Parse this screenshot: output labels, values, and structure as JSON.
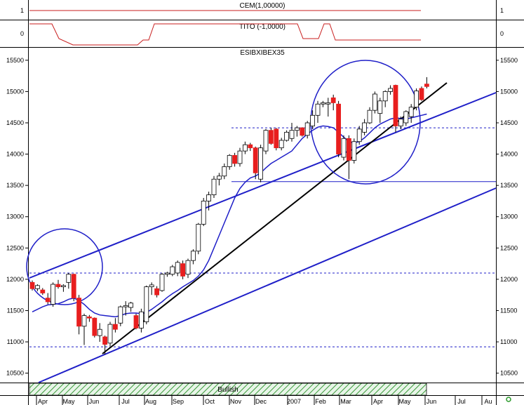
{
  "panels": {
    "top": {
      "title": "CEM(1,00000)",
      "axis_ticks": [
        "1"
      ],
      "color": "#c81e1e"
    },
    "middle": {
      "title": "TITO (-1,0000)",
      "axis_ticks": [
        "0"
      ],
      "color": "#c81e1e"
    },
    "main": {
      "title": "ESIBXIBEX35"
    }
  },
  "signal_bar": {
    "label": "Bullish"
  },
  "chart_data": {
    "type": "candlestick",
    "title": "ESIBXIBEX35",
    "x_labels": [
      "Apr",
      "May",
      "Jun",
      "Jul",
      "Aug",
      "Sep",
      "Oct",
      "Nov",
      "Dec",
      "2007",
      "Feb",
      "Mar",
      "Apr",
      "May",
      "Jun",
      "Jul",
      "Au"
    ],
    "y_ticks": [
      10500,
      11000,
      11500,
      12000,
      12500,
      13000,
      13500,
      14000,
      14500,
      15000,
      15500
    ],
    "ylim": [
      10350,
      15700
    ],
    "ohlc": [
      [
        11950,
        11980,
        11820,
        11850
      ],
      [
        11850,
        11920,
        11810,
        11900
      ],
      [
        11830,
        11860,
        11750,
        11780
      ],
      [
        11700,
        11780,
        11600,
        11640
      ],
      [
        11600,
        11950,
        11560,
        11920
      ],
      [
        11920,
        11990,
        11850,
        11880
      ],
      [
        11880,
        11920,
        11800,
        11900
      ],
      [
        11950,
        12100,
        11850,
        12080
      ],
      [
        12080,
        12090,
        11650,
        11700
      ],
      [
        11700,
        11750,
        11120,
        11250
      ],
      [
        11250,
        11450,
        10950,
        11420
      ],
      [
        11400,
        11430,
        11320,
        11380
      ],
      [
        11380,
        11390,
        11070,
        11100
      ],
      [
        11100,
        11300,
        11000,
        11200
      ],
      [
        11080,
        11100,
        10800,
        10960
      ],
      [
        10980,
        11320,
        10930,
        11280
      ],
      [
        11280,
        11380,
        11150,
        11200
      ],
      [
        11300,
        11580,
        11250,
        11560
      ],
      [
        11560,
        11650,
        11420,
        11580
      ],
      [
        11550,
        11640,
        11480,
        11620
      ],
      [
        11420,
        11450,
        11200,
        11220
      ],
      [
        11220,
        11530,
        11150,
        11480
      ],
      [
        11320,
        11900,
        11280,
        11880
      ],
      [
        11880,
        11950,
        11750,
        11910
      ],
      [
        11850,
        11890,
        11710,
        11750
      ],
      [
        11820,
        12100,
        11800,
        12080
      ],
      [
        12080,
        12120,
        12040,
        12100
      ],
      [
        12080,
        12230,
        12050,
        12200
      ],
      [
        12100,
        12300,
        12050,
        12270
      ],
      [
        12250,
        12300,
        12000,
        12050
      ],
      [
        12080,
        12330,
        12020,
        12300
      ],
      [
        12300,
        12480,
        12240,
        12450
      ],
      [
        12450,
        12900,
        12400,
        12880
      ],
      [
        12880,
        13300,
        12850,
        13250
      ],
      [
        13250,
        13400,
        13100,
        13350
      ],
      [
        13350,
        13650,
        13300,
        13600
      ],
      [
        13600,
        13700,
        13500,
        13650
      ],
      [
        13650,
        13850,
        13600,
        13800
      ],
      [
        13800,
        14000,
        13750,
        13980
      ],
      [
        13980,
        14020,
        13800,
        13850
      ],
      [
        13850,
        14100,
        13800,
        14050
      ],
      [
        14050,
        14200,
        14000,
        14150
      ],
      [
        14150,
        14180,
        14050,
        14100
      ],
      [
        14100,
        14120,
        13600,
        13700
      ],
      [
        13600,
        14150,
        13550,
        14100
      ],
      [
        14050,
        14400,
        14000,
        14380
      ],
      [
        14380,
        14420,
        14150,
        14170
      ],
      [
        14400,
        14420,
        14060,
        14100
      ],
      [
        14100,
        14260,
        14060,
        14220
      ],
      [
        14220,
        14380,
        14200,
        14350
      ],
      [
        14250,
        14500,
        14200,
        14380
      ],
      [
        14380,
        14450,
        14280,
        14420
      ],
      [
        14420,
        14430,
        14280,
        14300
      ],
      [
        14300,
        14530,
        14250,
        14500
      ],
      [
        14450,
        14700,
        14400,
        14620
      ],
      [
        14620,
        14850,
        14500,
        14800
      ],
      [
        14800,
        14850,
        14750,
        14820
      ],
      [
        14800,
        14900,
        14600,
        14820
      ],
      [
        14900,
        14950,
        14700,
        14820
      ],
      [
        14800,
        14850,
        13950,
        14000
      ],
      [
        13950,
        14300,
        13900,
        14250
      ],
      [
        14250,
        14300,
        13600,
        13900
      ],
      [
        13900,
        14250,
        13850,
        14200
      ],
      [
        14200,
        14450,
        14150,
        14400
      ],
      [
        14350,
        14560,
        14300,
        14500
      ],
      [
        14500,
        14750,
        14480,
        14700
      ],
      [
        14700,
        15000,
        14650,
        14960
      ],
      [
        14650,
        14900,
        14500,
        14850
      ],
      [
        14850,
        15020,
        14750,
        15000
      ],
      [
        15000,
        15100,
        14950,
        15050
      ],
      [
        15100,
        15110,
        14350,
        14450
      ],
      [
        14450,
        14600,
        14400,
        14560
      ],
      [
        14500,
        14700,
        14450,
        14680
      ],
      [
        14600,
        14800,
        14500,
        14750
      ],
      [
        14750,
        15050,
        14700,
        15010
      ],
      [
        15050,
        15080,
        14850,
        14870
      ],
      [
        15120,
        15230,
        15050,
        15080
      ]
    ],
    "moving_average": [
      11480,
      11520,
      11560,
      11590,
      11600,
      11610,
      11640,
      11680,
      11700,
      11660,
      11600,
      11520,
      11460,
      11430,
      11420,
      11410,
      11400,
      11420,
      11450,
      11460,
      11460,
      11450,
      11470,
      11520,
      11580,
      11640,
      11710,
      11770,
      11820,
      11880,
      11930,
      11980,
      12050,
      12150,
      12300,
      12500,
      12700,
      12900,
      13100,
      13300,
      13450,
      13550,
      13620,
      13650,
      13700,
      13780,
      13850,
      13900,
      13950,
      14000,
      14050,
      14150,
      14250,
      14320,
      14380,
      14430,
      14450,
      14440,
      14420,
      14350,
      14270,
      14200,
      14180,
      14200,
      14260,
      14340,
      14420,
      14480,
      14520,
      14560,
      14580,
      14570,
      14560,
      14580,
      14600,
      14620,
      14640
    ],
    "horizontal_lines": [
      {
        "value": 14420,
        "style": "dashed"
      },
      {
        "value": 13560,
        "style": "solid"
      },
      {
        "value": 12100,
        "style": "dashed"
      },
      {
        "value": 10920,
        "style": "dashed"
      }
    ],
    "top_panel_value": 1,
    "middle_panel_level": 0
  }
}
